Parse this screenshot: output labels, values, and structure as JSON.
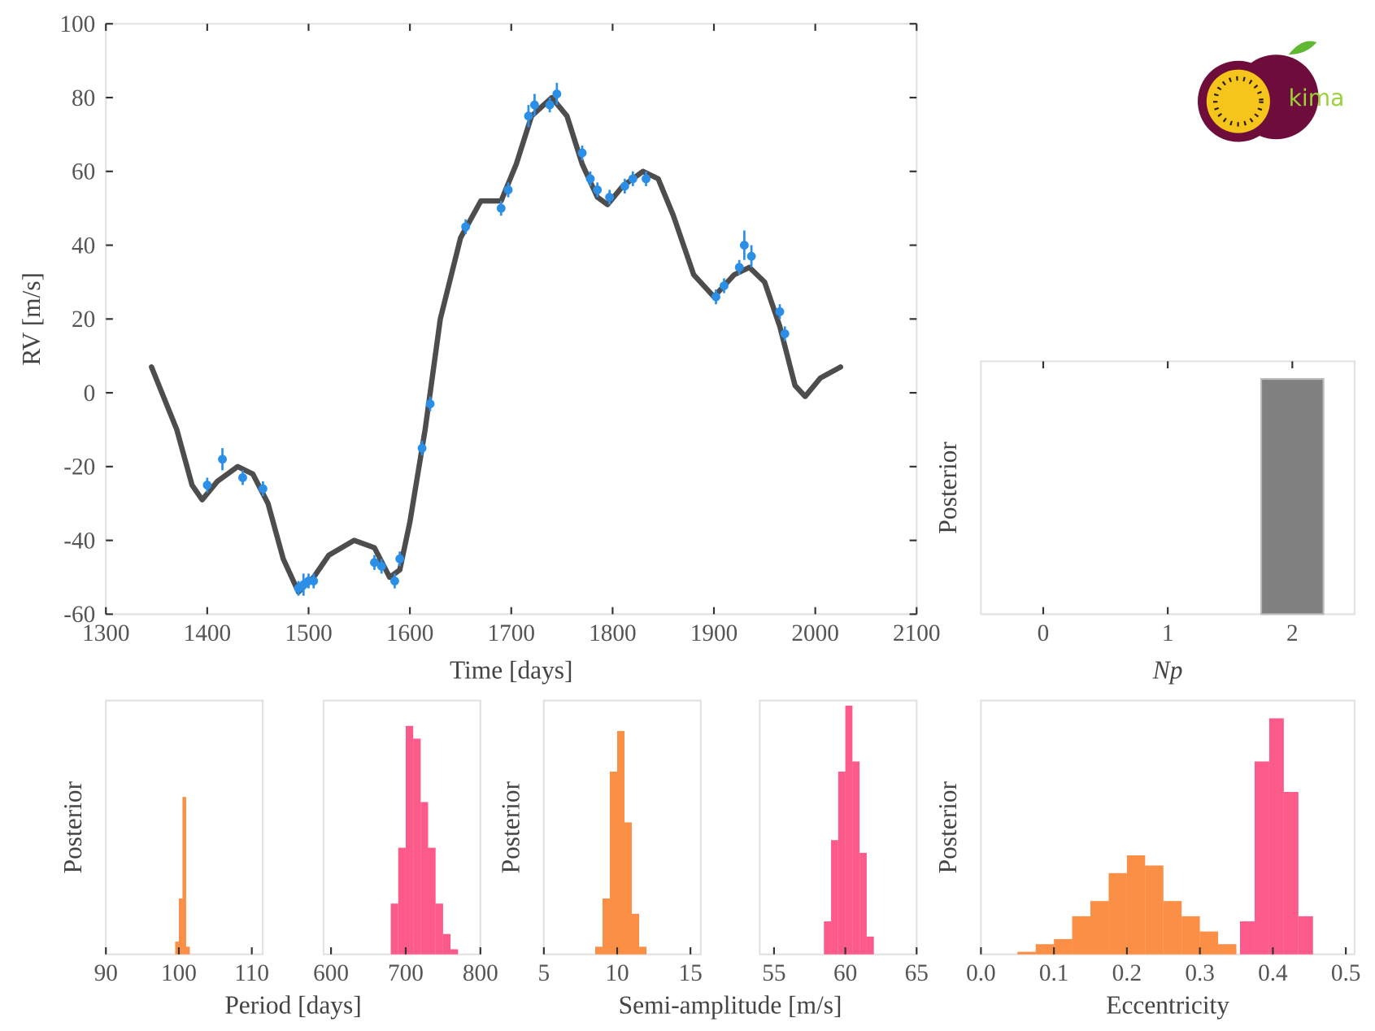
{
  "logo": {
    "text": "kima"
  },
  "chart_data": [
    {
      "type": "rv",
      "xlabel": "Time [days]",
      "ylabel": "RV [m/s]",
      "xlim": [
        1300,
        2100
      ],
      "xticks": [
        1300,
        1400,
        1500,
        1600,
        1700,
        1800,
        1900,
        2000,
        2100
      ],
      "ylim": [
        -60,
        100
      ],
      "yticks": [
        -60,
        -40,
        -20,
        0,
        20,
        40,
        60,
        80,
        100
      ],
      "x": [
        1345,
        1370,
        1385,
        1395,
        1410,
        1430,
        1445,
        1460,
        1475,
        1490,
        1505,
        1520,
        1545,
        1565,
        1580,
        1590,
        1600,
        1615,
        1630,
        1650,
        1670,
        1690,
        1705,
        1720,
        1740,
        1755,
        1770,
        1785,
        1795,
        1810,
        1830,
        1845,
        1860,
        1880,
        1900,
        1920,
        1935,
        1950,
        1965,
        1980,
        1990,
        2005,
        2025
      ],
      "series": [
        {
          "color": "#3a3a3a",
          "values": [
            7,
            -10,
            -25,
            -29,
            -24,
            -20,
            -22,
            -30,
            -45,
            -54,
            -50,
            -44,
            -40,
            -42,
            -50,
            -48,
            -35,
            -10,
            20,
            42,
            52,
            52,
            62,
            75,
            80,
            75,
            62,
            53,
            51,
            56,
            60,
            58,
            48,
            32,
            26,
            32,
            34,
            30,
            18,
            2,
            -1,
            4,
            7
          ]
        }
      ],
      "points": {
        "color": "#2b8fe8",
        "x": [
          1400,
          1415,
          1435,
          1455,
          1490,
          1495,
          1500,
          1505,
          1565,
          1572,
          1585,
          1590,
          1612,
          1620,
          1655,
          1690,
          1697,
          1717,
          1723,
          1738,
          1745,
          1770,
          1778,
          1785,
          1797,
          1812,
          1820,
          1833,
          1902,
          1910,
          1925,
          1930,
          1937,
          1965,
          1970
        ],
        "values": [
          -25,
          -18,
          -23,
          -26,
          -53,
          -52,
          -51,
          -51,
          -46,
          -47,
          -51,
          -45,
          -15,
          -3,
          45,
          50,
          55,
          75,
          78,
          78,
          81,
          65,
          58,
          55,
          53,
          56,
          58,
          58,
          26,
          29,
          34,
          40,
          37,
          22,
          16
        ],
        "errors": [
          2,
          3,
          2,
          2,
          2,
          3,
          2,
          2,
          2,
          2,
          2,
          2,
          2,
          2,
          2,
          2,
          2,
          3,
          3,
          2,
          3,
          2,
          2,
          2,
          2,
          2,
          2,
          2,
          2,
          2,
          2,
          4,
          3,
          2,
          2
        ]
      }
    },
    {
      "type": "bar",
      "xlabel": "Np",
      "ylabel": "Posterior",
      "x": [
        0,
        1,
        2
      ],
      "values": [
        0,
        0,
        1
      ],
      "color": "#808080",
      "xlim": [
        -0.5,
        2.5
      ],
      "xticks": [
        0,
        1,
        2
      ],
      "ylim": [
        0,
        1.075
      ]
    },
    {
      "type": "histogram",
      "xlabel": "Period [days]",
      "ylabel": "Posterior",
      "ylim": [
        0,
        1
      ],
      "panels": [
        {
          "xlim": [
            90,
            111.5
          ],
          "xticks": [
            90,
            100,
            110
          ],
          "series": [
            {
              "color": "#fb8f45",
              "bins": [
                99.5,
                100,
                100.5,
                101,
                101.5
              ],
              "values": [
                0.05,
                0.22,
                0.62,
                0.03
              ]
            }
          ]
        },
        {
          "xlim": [
            590,
            800
          ],
          "xticks": [
            600,
            700,
            800
          ],
          "series": [
            {
              "color": "#fb5a8b",
              "bins": [
                680,
                690,
                700,
                710,
                720,
                730,
                740,
                750,
                760,
                770
              ],
              "values": [
                0.2,
                0.42,
                0.9,
                0.85,
                0.6,
                0.42,
                0.2,
                0.08,
                0.02
              ]
            }
          ]
        }
      ]
    },
    {
      "type": "histogram",
      "xlabel": "Semi-amplitude [m/s]",
      "ylabel": "Posterior",
      "ylim": [
        0,
        1
      ],
      "panels": [
        {
          "xlim": [
            5,
            15.7
          ],
          "xticks": [
            5,
            10,
            15
          ],
          "series": [
            {
              "color": "#fb8f45",
              "bins": [
                8.5,
                9,
                9.5,
                10,
                10.5,
                11,
                11.5,
                12
              ],
              "values": [
                0.03,
                0.22,
                0.72,
                0.88,
                0.52,
                0.16,
                0.03
              ]
            }
          ]
        },
        {
          "xlim": [
            54,
            65
          ],
          "xticks": [
            55,
            60,
            65
          ],
          "series": [
            {
              "color": "#fb5a8b",
              "bins": [
                58.5,
                59,
                59.5,
                60,
                60.5,
                61,
                61.5,
                62
              ],
              "values": [
                0.13,
                0.45,
                0.72,
                0.98,
                0.76,
                0.4,
                0.07
              ]
            }
          ]
        }
      ]
    },
    {
      "type": "histogram",
      "xlabel": "Eccentricity",
      "ylabel": "Posterior",
      "ylim": [
        0,
        1
      ],
      "panels": [
        {
          "xlim": [
            0,
            0.512
          ],
          "xticks": [
            {
              "value": 0,
              "label": "0.0"
            },
            0.1,
            0.2,
            0.3,
            0.4,
            0.5
          ],
          "series": [
            {
              "color": "#fb8f45",
              "bins": [
                0.05,
                0.075,
                0.1,
                0.125,
                0.15,
                0.175,
                0.2,
                0.225,
                0.25,
                0.275,
                0.3,
                0.325,
                0.35
              ],
              "values": [
                0.01,
                0.04,
                0.06,
                0.15,
                0.21,
                0.32,
                0.39,
                0.35,
                0.21,
                0.15,
                0.09,
                0.04
              ]
            },
            {
              "color": "#fb5a8b",
              "bins": [
                0.355,
                0.375,
                0.395,
                0.415,
                0.435,
                0.455
              ],
              "values": [
                0.13,
                0.76,
                0.93,
                0.64,
                0.15
              ]
            }
          ]
        }
      ]
    }
  ]
}
